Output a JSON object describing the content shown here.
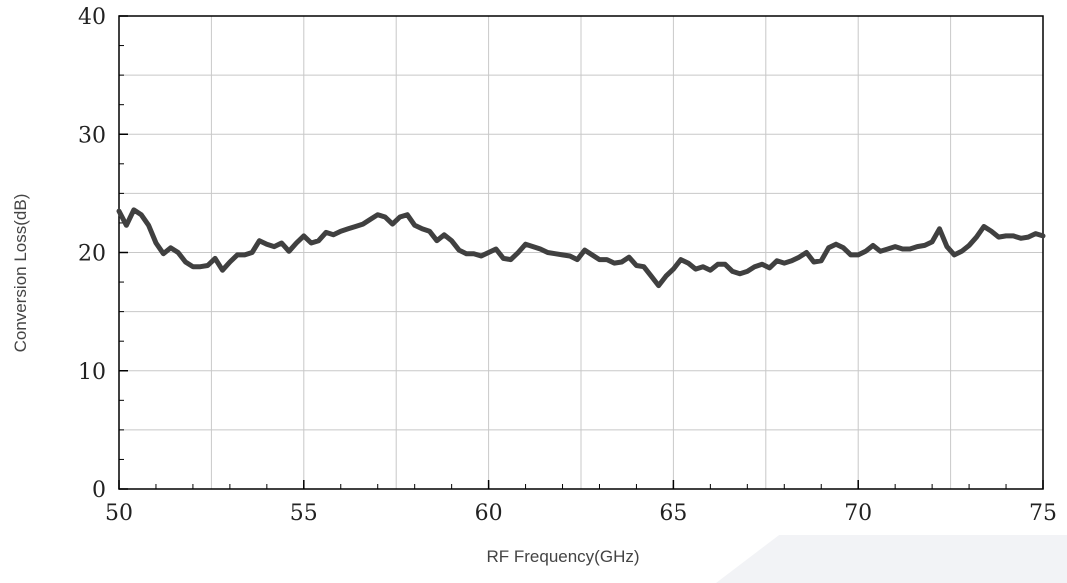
{
  "chart_data": {
    "type": "line",
    "title": "",
    "xlabel": "RF Frequency(GHz)",
    "ylabel": "Conversion Loss(dB)",
    "xlim": [
      50,
      75
    ],
    "ylim": [
      0,
      40
    ],
    "xticks": [
      50,
      55,
      60,
      65,
      70,
      75
    ],
    "yticks": [
      0,
      10,
      20,
      30,
      40
    ],
    "grid": true,
    "series": [
      {
        "color": "#404040",
        "x": [
          50.0,
          50.2,
          50.4,
          50.6,
          50.8,
          51.0,
          51.2,
          51.4,
          51.6,
          51.8,
          52.0,
          52.2,
          52.4,
          52.6,
          52.8,
          53.0,
          53.2,
          53.4,
          53.6,
          53.8,
          54.0,
          54.2,
          54.4,
          54.6,
          54.8,
          55.0,
          55.2,
          55.4,
          55.6,
          55.8,
          56.0,
          56.2,
          56.4,
          56.6,
          56.8,
          57.0,
          57.2,
          57.4,
          57.6,
          57.8,
          58.0,
          58.2,
          58.4,
          58.6,
          58.8,
          59.0,
          59.2,
          59.4,
          59.6,
          59.8,
          60.0,
          60.2,
          60.4,
          60.6,
          60.8,
          61.0,
          61.2,
          61.4,
          61.6,
          61.8,
          62.0,
          62.2,
          62.4,
          62.6,
          62.8,
          63.0,
          63.2,
          63.4,
          63.6,
          63.8,
          64.0,
          64.2,
          64.4,
          64.6,
          64.8,
          65.0,
          65.2,
          65.4,
          65.6,
          65.8,
          66.0,
          66.2,
          66.4,
          66.6,
          66.8,
          67.0,
          67.2,
          67.4,
          67.6,
          67.8,
          68.0,
          68.2,
          68.4,
          68.6,
          68.8,
          69.0,
          69.2,
          69.4,
          69.6,
          69.8,
          70.0,
          70.2,
          70.4,
          70.6,
          70.8,
          71.0,
          71.2,
          71.4,
          71.6,
          71.8,
          72.0,
          72.2,
          72.4,
          72.6,
          72.8,
          73.0,
          73.2,
          73.4,
          73.6,
          73.8,
          74.0,
          74.2,
          74.4,
          74.6,
          74.8,
          75.0
        ],
        "y": [
          23.5,
          22.3,
          23.6,
          23.2,
          22.3,
          20.8,
          19.9,
          20.4,
          20.0,
          19.2,
          18.8,
          18.8,
          18.9,
          19.5,
          18.5,
          19.2,
          19.8,
          19.8,
          20.0,
          21.0,
          20.7,
          20.5,
          20.8,
          20.1,
          20.8,
          21.4,
          20.8,
          21.0,
          21.7,
          21.5,
          21.8,
          22.0,
          22.2,
          22.4,
          22.8,
          23.2,
          23.0,
          22.4,
          23.0,
          23.2,
          22.3,
          22.0,
          21.8,
          21.0,
          21.5,
          21.0,
          20.2,
          19.9,
          19.9,
          19.7,
          20.0,
          20.3,
          19.5,
          19.4,
          20.0,
          20.7,
          20.5,
          20.3,
          20.0,
          19.9,
          19.8,
          19.7,
          19.4,
          20.2,
          19.8,
          19.4,
          19.4,
          19.1,
          19.2,
          19.6,
          18.9,
          18.8,
          18.0,
          17.2,
          18.0,
          18.6,
          19.4,
          19.1,
          18.6,
          18.8,
          18.5,
          19.0,
          19.0,
          18.4,
          18.2,
          18.4,
          18.8,
          19.0,
          18.7,
          19.3,
          19.1,
          19.3,
          19.6,
          20.0,
          19.2,
          19.3,
          20.4,
          20.7,
          20.4,
          19.8,
          19.8,
          20.1,
          20.6,
          20.1,
          20.3,
          20.5,
          20.3,
          20.3,
          20.5,
          20.6,
          20.9,
          22.0,
          20.5,
          19.8,
          20.1,
          20.6,
          21.3,
          22.2,
          21.8,
          21.3,
          21.4,
          21.4,
          21.2,
          21.3,
          21.6,
          21.4
        ]
      }
    ]
  }
}
